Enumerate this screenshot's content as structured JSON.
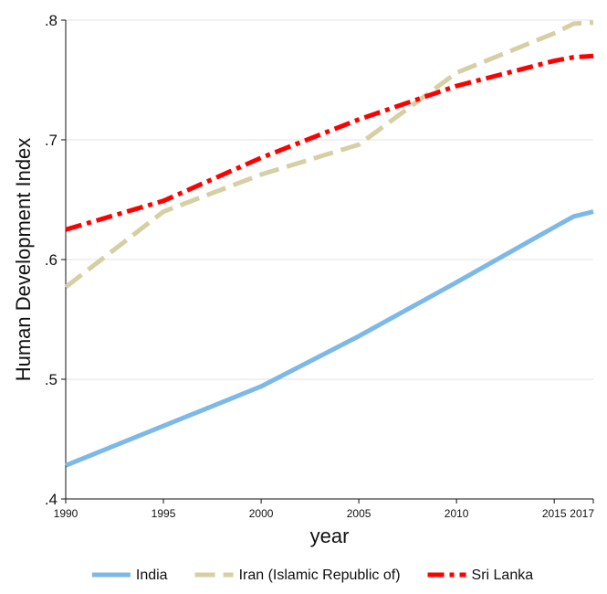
{
  "chart_data": {
    "type": "line",
    "title": "",
    "xlabel": "year",
    "ylabel": "Human Development Index",
    "x": [
      1990,
      1995,
      2000,
      2005,
      2010,
      2015,
      2016,
      2017
    ],
    "xlim": [
      1990,
      2017
    ],
    "ylim": [
      0.4,
      0.8
    ],
    "y_ticks": [
      0.4,
      0.5,
      0.6,
      0.7,
      0.8
    ],
    "y_tick_labels": [
      ".4",
      ".5",
      ".6",
      ".7",
      ".8"
    ],
    "x_ticks": [
      1990,
      1995,
      2000,
      2005,
      2010,
      2015,
      2017
    ],
    "x_tick_labels": [
      "1990",
      "1995",
      "2000",
      "2005",
      "2010",
      "2015",
      "2017"
    ],
    "grid": true,
    "legend_position": "bottom",
    "series": [
      {
        "name": "India",
        "color": "#7cb8e8",
        "line_style": "solid",
        "values": [
          0.428,
          0.461,
          0.494,
          0.536,
          0.581,
          0.627,
          0.636,
          0.64
        ]
      },
      {
        "name": "Iran (Islamic Republic of)",
        "color": "#d6cfa4",
        "line_style": "dashed",
        "values": [
          0.577,
          0.64,
          0.671,
          0.696,
          0.756,
          0.789,
          0.797,
          0.798
        ]
      },
      {
        "name": "Sri Lanka",
        "color": "#ff0000",
        "line_style": "dash-dot",
        "values": [
          0.625,
          0.649,
          0.685,
          0.717,
          0.745,
          0.766,
          0.769,
          0.77
        ]
      }
    ]
  }
}
